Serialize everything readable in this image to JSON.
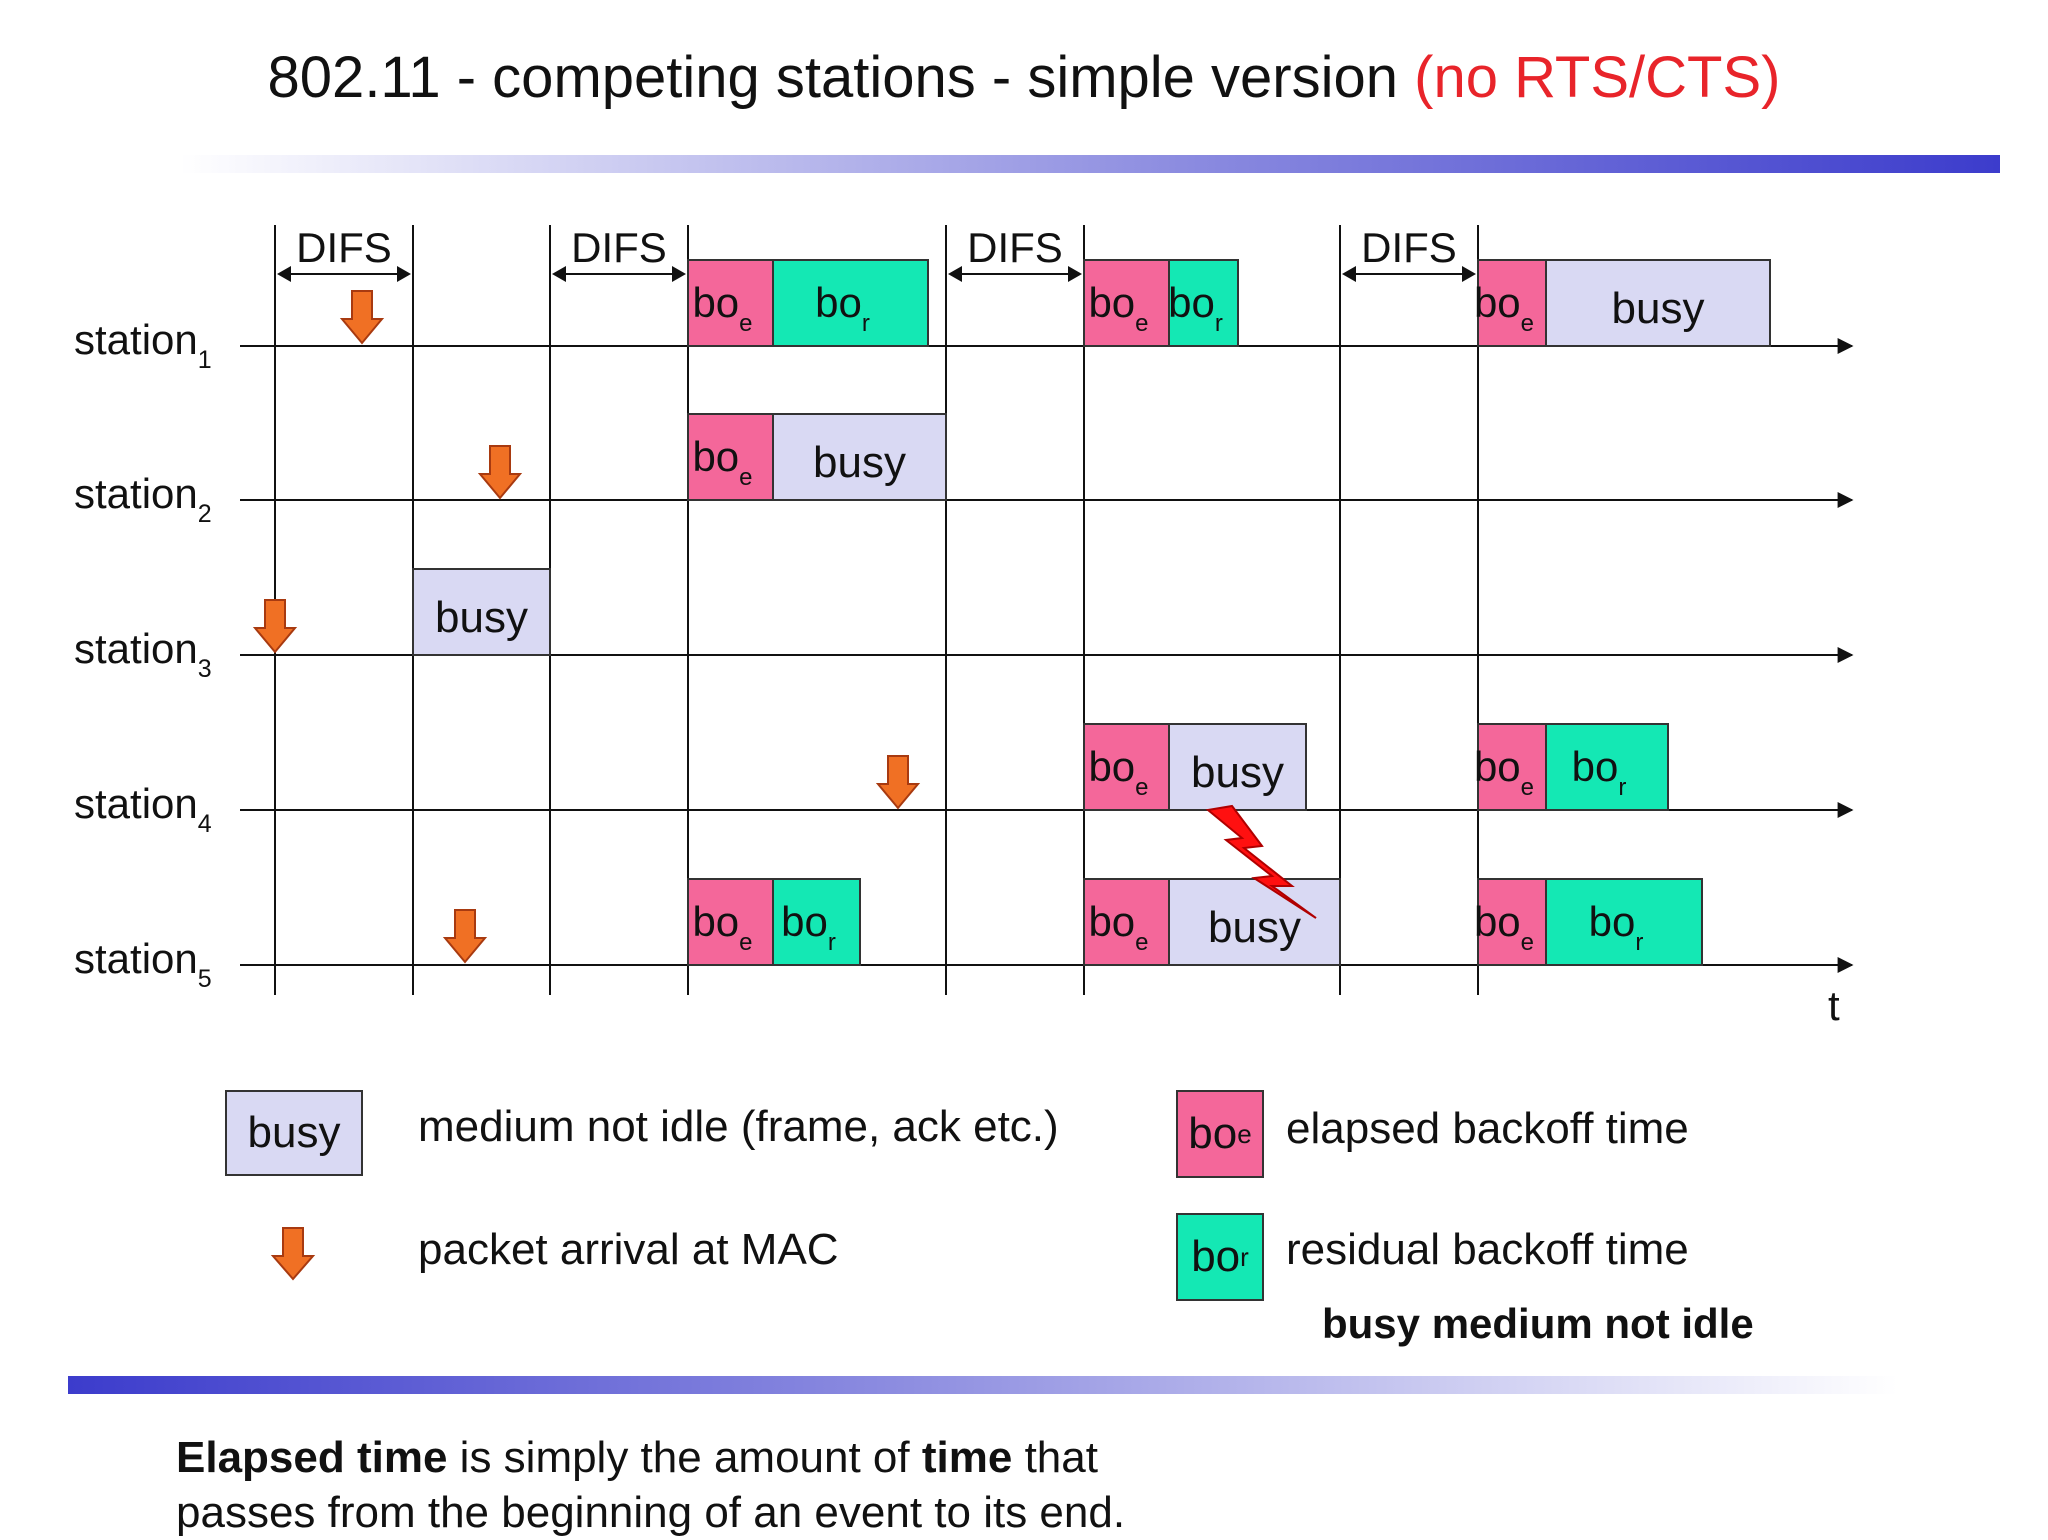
{
  "title": {
    "main": "802.11 - competing stations - simple version ",
    "highlight": "(no RTS/CTS)"
  },
  "colors": {
    "busy": "#d9d9f3",
    "boe": "#f4679a",
    "bor": "#14e8b4",
    "arrow": "#f07024",
    "highlight": "#e8242a",
    "bolt": "#ff1010"
  },
  "stations": [
    {
      "name": "station",
      "index": "1"
    },
    {
      "name": "station",
      "index": "2"
    },
    {
      "name": "station",
      "index": "3"
    },
    {
      "name": "station",
      "index": "4"
    },
    {
      "name": "station",
      "index": "5"
    }
  ],
  "difs_label": "DIFS",
  "time_label": "t",
  "block_labels": {
    "busy": "busy",
    "bo": "bo",
    "e": "e",
    "r": "r"
  },
  "legend": {
    "busy_box": "busy",
    "busy_desc": "medium not idle (frame, ack etc.)",
    "arrow_desc": "packet arrival at MAC",
    "boe_desc": "elapsed backoff time",
    "bor_desc": "residual backoff time",
    "busy_note": "busy medium not idle"
  },
  "caption": {
    "b1": "Elapsed time",
    "t1": " is simply the amount of ",
    "b2": "time",
    "t2": " that",
    "line2": "passes from the beginning of an event to its end."
  }
}
